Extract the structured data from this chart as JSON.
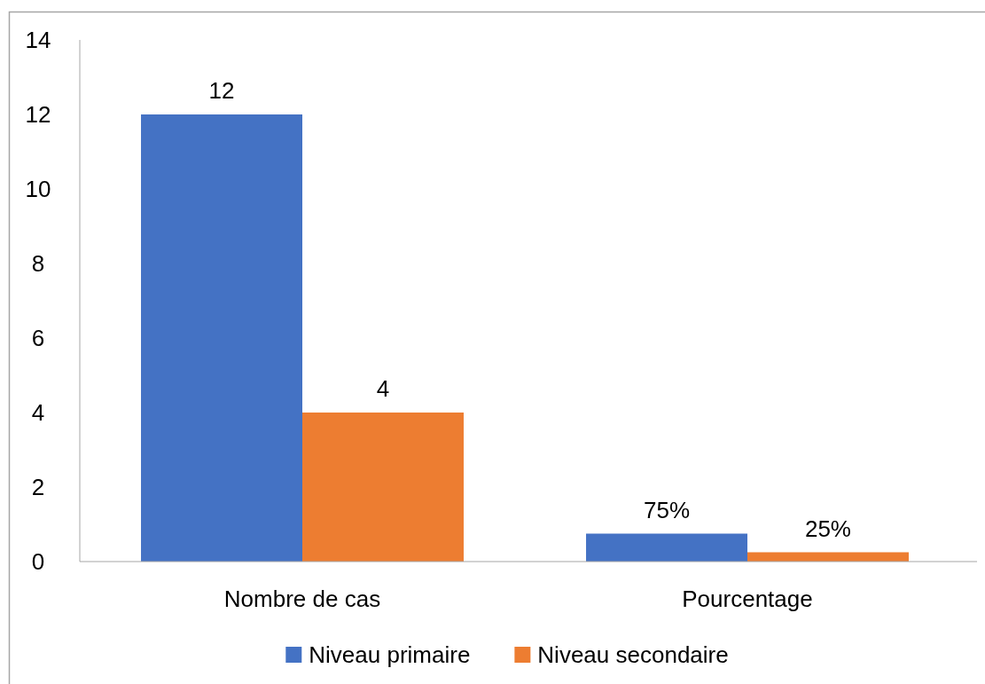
{
  "chart_data": {
    "type": "bar",
    "categories": [
      "Nombre de cas",
      "Pourcentage"
    ],
    "series": [
      {
        "name": "Niveau primaire",
        "color": "#4472c4",
        "values": [
          12,
          0.75
        ],
        "value_labels": [
          "12",
          "75%"
        ]
      },
      {
        "name": "Niveau secondaire",
        "color": "#ed7d31",
        "values": [
          4,
          0.25
        ],
        "value_labels": [
          "4",
          "25%"
        ]
      }
    ],
    "ylim": [
      0,
      14
    ],
    "yticks": [
      0,
      2,
      4,
      6,
      8,
      10,
      12,
      14
    ],
    "legend": "bottom"
  }
}
